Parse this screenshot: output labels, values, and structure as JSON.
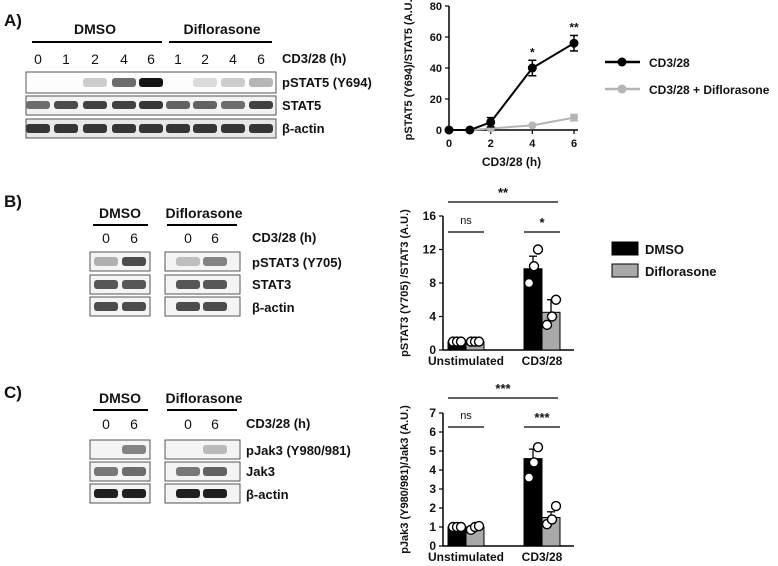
{
  "panels": {
    "A": {
      "label": "A)",
      "blot": {
        "groups": [
          "DMSO",
          "Diflorasone"
        ],
        "treatment_label": "CD3/28 (h)",
        "lanes": [
          "0",
          "1",
          "2",
          "4",
          "6",
          "1",
          "2",
          "4",
          "6"
        ],
        "rows": [
          "pSTAT5 (Y694)",
          "STAT5",
          "β-actin"
        ]
      }
    },
    "B": {
      "label": "B)",
      "blot": {
        "groups": [
          "DMSO",
          "Diflorasone"
        ],
        "treatment_label": "CD3/28 (h)",
        "lanes": [
          "0",
          "6",
          "0",
          "6"
        ],
        "rows": [
          "pSTAT3 (Y705)",
          "STAT3",
          "β-actin"
        ]
      },
      "significance": [
        "**",
        "ns",
        "*"
      ]
    },
    "C": {
      "label": "C)",
      "blot": {
        "groups": [
          "DMSO",
          "Diflorasone"
        ],
        "treatment_label": "CD3/28 (h)",
        "lanes": [
          "0",
          "6",
          "0",
          "6"
        ],
        "rows": [
          "pJak3 (Y980/981)",
          "Jak3",
          "β-actin"
        ]
      },
      "significance": [
        "***",
        "ns",
        "***"
      ]
    }
  },
  "colors": {
    "dmso": "#000000",
    "diflorasone": "#a9a9a9",
    "difl_line": "#b5b5b5"
  },
  "chart_data": [
    {
      "type": "line",
      "xlabel": "CD3/28 (h)",
      "ylabel": "pSTAT5 (Y694)/STAT5 (A.U.)",
      "x": [
        0,
        2,
        4,
        6
      ],
      "xticks": [
        "0",
        "2",
        "4",
        "6"
      ],
      "yticks": [
        "0",
        "20",
        "40",
        "60",
        "80"
      ],
      "xlim": [
        0,
        6
      ],
      "ylim": [
        0,
        80
      ],
      "legend_position": "right",
      "series": [
        {
          "name": "CD3/28",
          "x": [
            0,
            1,
            2,
            4,
            6
          ],
          "values": [
            0,
            0,
            5,
            40,
            56
          ],
          "err": [
            0,
            0,
            3,
            5,
            5
          ]
        },
        {
          "name": "CD3/28 + Diflorasone",
          "x": [
            0,
            1,
            2,
            4,
            6
          ],
          "values": [
            0,
            0,
            1,
            3,
            8
          ],
          "err": [
            0,
            0,
            0,
            0,
            2
          ]
        }
      ],
      "annotations": [
        {
          "x": 4,
          "text": "*"
        },
        {
          "x": 6,
          "text": "**"
        }
      ]
    },
    {
      "type": "bar",
      "categories": [
        "Unstimulated",
        "CD3/28"
      ],
      "ylabel": "pSTAT3 (Y705) /STAT3 (A.U.)",
      "yticks": [
        "0",
        "4",
        "8",
        "12",
        "16"
      ],
      "ylim": [
        0,
        16
      ],
      "legend_position": "right",
      "series": [
        {
          "name": "DMSO",
          "values": [
            1,
            9.7
          ],
          "err": [
            0,
            1.5
          ],
          "points": [
            [
              1,
              1,
              1
            ],
            [
              8,
              10,
              12
            ]
          ]
        },
        {
          "name": "Diflorasone",
          "values": [
            1,
            4.5
          ],
          "err": [
            0,
            1.5
          ],
          "points": [
            [
              1,
              1,
              1
            ],
            [
              3,
              4,
              6
            ]
          ]
        }
      ]
    },
    {
      "type": "bar",
      "categories": [
        "Unstimulated",
        "CD3/28"
      ],
      "ylabel": "pJak3 (Y980/981)/Jak3 (A.U.)",
      "yticks": [
        "0",
        "1",
        "2",
        "3",
        "4",
        "5",
        "6",
        "7"
      ],
      "ylim": [
        0,
        7
      ],
      "series": [
        {
          "name": "DMSO",
          "values": [
            1,
            4.6
          ],
          "err": [
            0,
            0.5
          ],
          "points": [
            [
              1,
              1,
              1
            ],
            [
              3.6,
              4.4,
              5.2
            ]
          ]
        },
        {
          "name": "Diflorasone",
          "values": [
            1,
            1.5
          ],
          "err": [
            0,
            0.3
          ],
          "points": [
            [
              0.85,
              1,
              1.05
            ],
            [
              1.15,
              1.4,
              2.1
            ]
          ]
        }
      ]
    }
  ]
}
